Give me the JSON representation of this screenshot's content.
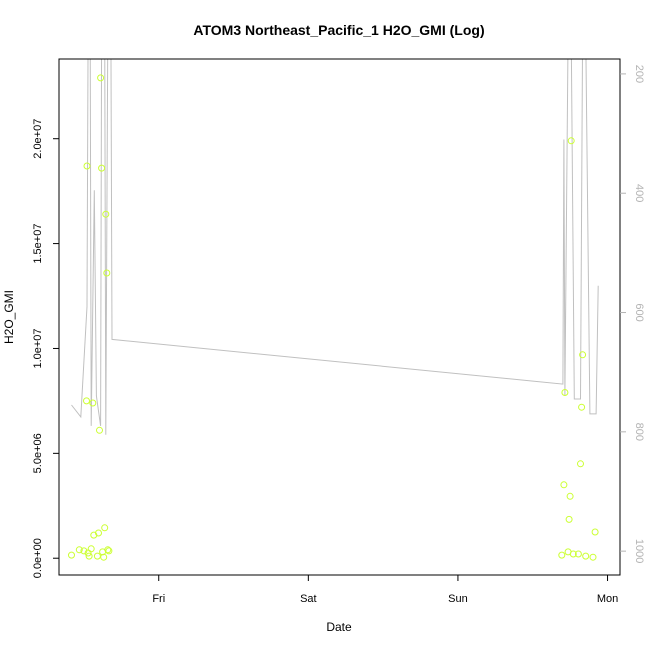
{
  "chart_data": {
    "type": "scatter",
    "title": "ATOM3 Northeast_Pacific_1 H2O_GMI (Log)",
    "xlabel": "Date",
    "ylabel": "H2O_GMI",
    "x_axis": {
      "type": "date",
      "ticks": [
        {
          "label": "Fri",
          "value": "2017-10-13T00:00"
        },
        {
          "label": "Sat",
          "value": "2017-10-14T00:00"
        },
        {
          "label": "Sun",
          "value": "2017-10-15T00:00"
        },
        {
          "label": "Mon",
          "value": "2017-10-16T00:00"
        }
      ],
      "xlim": [
        "2017-10-12T08:00",
        "2017-10-16T02:00"
      ]
    },
    "y_axis": {
      "ticks": [
        {
          "label": "0.0e+00",
          "value": 0
        },
        {
          "label": "5.0e+06",
          "value": 5000000
        },
        {
          "label": "1.0e+07",
          "value": 10000000
        },
        {
          "label": "1.5e+07",
          "value": 15000000
        },
        {
          "label": "2.0e+07",
          "value": 20000000
        }
      ],
      "ylim": [
        -800000,
        23800000
      ]
    },
    "y2_axis": {
      "ticks": [
        {
          "label": "200",
          "value": 200
        },
        {
          "label": "400",
          "value": 400
        },
        {
          "label": "600",
          "value": 600
        },
        {
          "label": "800",
          "value": 800
        },
        {
          "label": "1000",
          "value": 1000
        }
      ],
      "ylim": [
        1040,
        175
      ],
      "reversed": true,
      "color": "#b3b3b3"
    },
    "series": [
      {
        "role": "points",
        "color": "#ccff33",
        "marker": "open-circle",
        "points": [
          {
            "x": "2017-10-12T10:00",
            "y": 150000
          },
          {
            "x": "2017-10-12T11:15",
            "y": 400000
          },
          {
            "x": "2017-10-12T12:00",
            "y": 350000
          },
          {
            "x": "2017-10-12T12:25",
            "y": 7500000
          },
          {
            "x": "2017-10-12T12:30",
            "y": 18700000
          },
          {
            "x": "2017-10-12T12:40",
            "y": 250000
          },
          {
            "x": "2017-10-12T12:50",
            "y": 100000
          },
          {
            "x": "2017-10-12T13:10",
            "y": 450000
          },
          {
            "x": "2017-10-12T13:25",
            "y": 7400000
          },
          {
            "x": "2017-10-12T13:35",
            "y": 1100000
          },
          {
            "x": "2017-10-12T14:10",
            "y": 100000
          },
          {
            "x": "2017-10-12T14:20",
            "y": 1200000
          },
          {
            "x": "2017-10-12T14:30",
            "y": 6100000
          },
          {
            "x": "2017-10-12T14:40",
            "y": 22900000
          },
          {
            "x": "2017-10-12T14:50",
            "y": 18600000
          },
          {
            "x": "2017-10-12T15:00",
            "y": 300000
          },
          {
            "x": "2017-10-12T15:10",
            "y": 50000
          },
          {
            "x": "2017-10-12T15:20",
            "y": 1450000
          },
          {
            "x": "2017-10-12T15:30",
            "y": 16400000
          },
          {
            "x": "2017-10-12T15:40",
            "y": 13600000
          },
          {
            "x": "2017-10-12T15:50",
            "y": 400000
          },
          {
            "x": "2017-10-12T16:00",
            "y": 350000
          },
          {
            "x": "2017-10-15T16:40",
            "y": 150000
          },
          {
            "x": "2017-10-15T17:00",
            "y": 3500000
          },
          {
            "x": "2017-10-15T17:10",
            "y": 7900000
          },
          {
            "x": "2017-10-15T17:40",
            "y": 300000
          },
          {
            "x": "2017-10-15T17:50",
            "y": 1850000
          },
          {
            "x": "2017-10-15T18:00",
            "y": 2950000
          },
          {
            "x": "2017-10-15T18:10",
            "y": 19900000
          },
          {
            "x": "2017-10-15T18:30",
            "y": 200000
          },
          {
            "x": "2017-10-15T19:20",
            "y": 200000
          },
          {
            "x": "2017-10-15T19:40",
            "y": 4500000
          },
          {
            "x": "2017-10-15T19:50",
            "y": 7200000
          },
          {
            "x": "2017-10-15T20:00",
            "y": 9700000
          },
          {
            "x": "2017-10-15T20:30",
            "y": 100000
          },
          {
            "x": "2017-10-15T21:40",
            "y": 50000
          },
          {
            "x": "2017-10-15T22:00",
            "y": 1250000
          }
        ]
      },
      {
        "role": "line",
        "axis": "y2",
        "color": "#c0c0c0",
        "points": [
          {
            "x": "2017-10-12T10:00",
            "y": 755
          },
          {
            "x": "2017-10-12T11:30",
            "y": 775
          },
          {
            "x": "2017-10-12T12:30",
            "y": 590
          },
          {
            "x": "2017-10-12T12:40",
            "y": 130
          },
          {
            "x": "2017-10-12T13:00",
            "y": 130
          },
          {
            "x": "2017-10-12T13:10",
            "y": 790
          },
          {
            "x": "2017-10-12T13:40",
            "y": 395
          },
          {
            "x": "2017-10-12T14:00",
            "y": 740
          },
          {
            "x": "2017-10-12T14:40",
            "y": 790
          },
          {
            "x": "2017-10-12T14:50",
            "y": 130
          },
          {
            "x": "2017-10-12T15:20",
            "y": 130
          },
          {
            "x": "2017-10-12T15:30",
            "y": 805
          },
          {
            "x": "2017-10-12T15:50",
            "y": 130
          },
          {
            "x": "2017-10-12T16:20",
            "y": 130
          },
          {
            "x": "2017-10-12T16:30",
            "y": 645
          },
          {
            "x": "2017-10-15T16:50",
            "y": 720
          },
          {
            "x": "2017-10-15T17:00",
            "y": 310
          },
          {
            "x": "2017-10-15T17:10",
            "y": 740
          },
          {
            "x": "2017-10-15T17:40",
            "y": 130
          },
          {
            "x": "2017-10-15T18:10",
            "y": 130
          },
          {
            "x": "2017-10-15T18:40",
            "y": 745
          },
          {
            "x": "2017-10-15T19:40",
            "y": 745
          },
          {
            "x": "2017-10-15T20:00",
            "y": 130
          },
          {
            "x": "2017-10-15T20:30",
            "y": 130
          },
          {
            "x": "2017-10-15T21:10",
            "y": 770
          },
          {
            "x": "2017-10-15T22:10",
            "y": 770
          },
          {
            "x": "2017-10-15T22:30",
            "y": 555
          }
        ]
      }
    ],
    "grid": false,
    "legend": "none"
  }
}
